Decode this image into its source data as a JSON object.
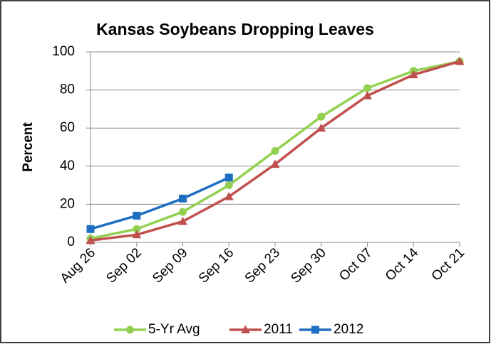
{
  "chart_data": {
    "type": "line",
    "title": "Kansas Soybeans Dropping Leaves",
    "y_label": "Percent",
    "categories": [
      "Aug 26",
      "Sep 02",
      "Sep 09",
      "Sep 16",
      "Sep 23",
      "Sep 30",
      "Oct 07",
      "Oct 14",
      "Oct 21"
    ],
    "series": [
      {
        "name": "5-Yr Avg",
        "color": "#92d050",
        "marker": "circle",
        "values": [
          2,
          7,
          16,
          30,
          48,
          66,
          81,
          90,
          95
        ]
      },
      {
        "name": "2011",
        "color": "#c0504d",
        "marker": "triangle",
        "values": [
          1,
          4,
          11,
          24,
          41,
          60,
          77,
          88,
          95
        ]
      },
      {
        "name": "2012",
        "color": "#1f6fc1",
        "marker": "square",
        "values": [
          7,
          14,
          23,
          34,
          null,
          null,
          null,
          null,
          null
        ]
      }
    ],
    "ylim": [
      0,
      100
    ],
    "yticks": [
      0,
      20,
      40,
      60,
      80,
      100
    ],
    "grid": true,
    "legend": "bottom"
  }
}
